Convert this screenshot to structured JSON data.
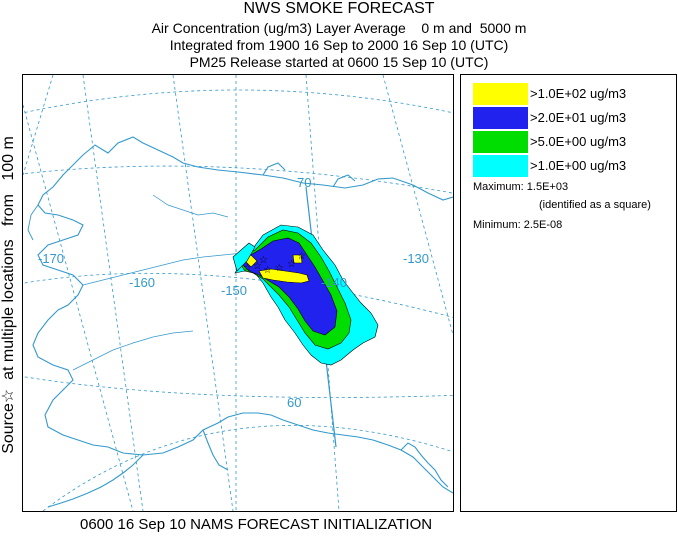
{
  "title": {
    "line1": "NWS SMOKE FORECAST",
    "line2": "Air Concentration (ug/m3) Layer Average    0 m and  5000 m",
    "line3": "Integrated from 1900 16 Sep to 2000 16 Sep 10 (UTC)",
    "line4": "PM25 Release started at 0600 15 Sep 10 (UTC)"
  },
  "side_label": "Source☆  at multiple locations   from   100 m",
  "map": {
    "longitude_labels": [
      "-170",
      "-160",
      "-150",
      "-140",
      "-130"
    ],
    "latitude_labels": [
      "70",
      "60"
    ],
    "coastline_color": "#3399cc",
    "gridline_color": "#3399cc",
    "plume": {
      "colors": [
        "#00ffff",
        "#00dd00",
        "#2222ee",
        "#ffff00"
      ],
      "source_marker": "☆"
    }
  },
  "legend": {
    "items": [
      {
        "color": "#ffff00",
        "label": ">1.0E+02 ug/m3"
      },
      {
        "color": "#2222ee",
        "label": ">2.0E+01 ug/m3"
      },
      {
        "color": "#00dd00",
        "label": ">5.0E+00 ug/m3"
      },
      {
        "color": "#00ffff",
        "label": ">1.0E+00 ug/m3"
      }
    ],
    "maximum": "Maximum: 1.5E+03",
    "maximum_note": "(identified as a square)",
    "minimum": "Minimum: 2.5E-08"
  },
  "bottom_caption": "0600 16 Sep 10 NAMS FORECAST INITIALIZATION"
}
